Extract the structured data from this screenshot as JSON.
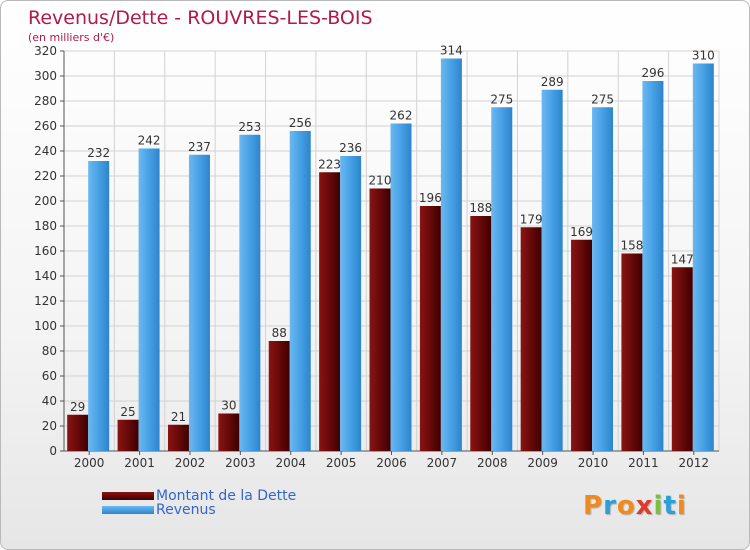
{
  "title": "Revenus/Dette - ROUVRES-LES-BOIS",
  "subtitle": "(en milliers d'€)",
  "logo": {
    "text": "Proxiti",
    "letters": [
      "P",
      "r",
      "o",
      "x",
      "i",
      "t",
      "i"
    ]
  },
  "colors": {
    "title": "#b01a4e",
    "dette": "#6b0a0a",
    "revenus": "#4aa3e6",
    "legend_text": "#3366cc",
    "axis_text": "#333333",
    "grid": "#d2d2d2"
  },
  "chart_data": {
    "type": "bar",
    "categories": [
      "2000",
      "2001",
      "2002",
      "2003",
      "2004",
      "2005",
      "2006",
      "2007",
      "2008",
      "2009",
      "2010",
      "2011",
      "2012"
    ],
    "series": [
      {
        "name": "Montant de la Dette",
        "values": [
          29,
          25,
          21,
          30,
          88,
          223,
          210,
          196,
          188,
          179,
          169,
          158,
          147
        ]
      },
      {
        "name": "Revenus",
        "values": [
          232,
          242,
          237,
          253,
          256,
          236,
          262,
          314,
          275,
          289,
          275,
          296,
          310
        ]
      }
    ],
    "ylim": [
      0,
      320
    ],
    "yticks": [
      0,
      20,
      40,
      60,
      80,
      100,
      120,
      140,
      160,
      180,
      200,
      220,
      240,
      260,
      280,
      300,
      320
    ],
    "grid": true,
    "legend_position": "bottom-left"
  }
}
